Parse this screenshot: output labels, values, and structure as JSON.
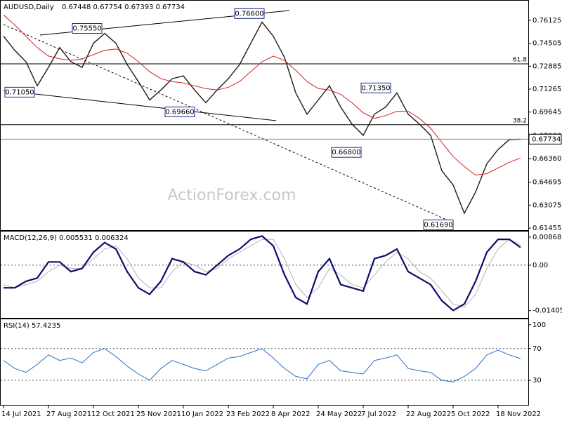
{
  "chart_data": [
    {
      "type": "line",
      "title": "AUDUSD,Daily",
      "subtitle": "0.67448 0.67754 0.67393 0.67734",
      "watermark": "ActionForex.com",
      "ylim": [
        0.6131,
        0.7731
      ],
      "yticks": [
        0.76125,
        0.74505,
        0.72885,
        0.71265,
        0.69645,
        {
          "value": 0.6798,
          "label": "0.67980"
        },
        {
          "value": 0.6636,
          "label": "0.66360"
        },
        0.64695,
        0.63075,
        0.61455
      ],
      "last_price": {
        "value": 0.67734,
        "label": "0.67734"
      },
      "fib_levels": [
        {
          "value": 0.7305,
          "label": "61.8"
        },
        {
          "value": 0.6875,
          "label": "38.2"
        }
      ],
      "annotations": [
        {
          "value": 0.766,
          "label": "0.76600"
        },
        {
          "value": 0.7555,
          "label": "0.75550"
        },
        {
          "value": 0.7105,
          "label": "0.71050"
        },
        {
          "value": 0.6966,
          "label": "0.69660"
        },
        {
          "value": 0.668,
          "label": "0.66800"
        },
        {
          "value": 0.7135,
          "label": "0.71350"
        },
        {
          "value": 0.6169,
          "label": "0.61690"
        }
      ],
      "series": [
        {
          "color": "#1a1a1a",
          "values": [
            0.75,
            0.74,
            0.732,
            0.715,
            0.728,
            0.742,
            0.732,
            0.728,
            0.745,
            0.752,
            0.745,
            0.73,
            0.718,
            0.705,
            0.712,
            0.72,
            0.722,
            0.712,
            0.703,
            0.712,
            0.72,
            0.73,
            0.745,
            0.76,
            0.75,
            0.735,
            0.71,
            0.695,
            0.705,
            0.715,
            0.7,
            0.688,
            0.68,
            0.695,
            0.7,
            0.71,
            0.695,
            0.688,
            0.68,
            0.655,
            0.645,
            0.625,
            0.64,
            0.66,
            0.67,
            0.677,
            0.6773
          ]
        },
        {
          "color": "#d22020",
          "values": [
            0.765,
            0.758,
            0.75,
            0.742,
            0.736,
            0.734,
            0.733,
            0.734,
            0.737,
            0.74,
            0.741,
            0.738,
            0.732,
            0.725,
            0.72,
            0.718,
            0.717,
            0.715,
            0.713,
            0.712,
            0.714,
            0.718,
            0.725,
            0.732,
            0.736,
            0.733,
            0.726,
            0.718,
            0.713,
            0.712,
            0.709,
            0.703,
            0.696,
            0.692,
            0.694,
            0.697,
            0.697,
            0.692,
            0.685,
            0.675,
            0.665,
            0.658,
            0.652,
            0.653,
            0.657,
            0.661,
            0.664
          ]
        }
      ]
    },
    {
      "type": "line",
      "title": "MACD(12,26,9) 0.005531 0.006324",
      "ylim": [
        -0.0163,
        0.0104
      ],
      "yticks": [
        0.008687,
        {
          "value": 0,
          "label": "0.00"
        },
        -0.014056
      ],
      "series": [
        {
          "color": "#b4b4b4",
          "values": [
            -0.006,
            -0.007,
            -0.006,
            -0.005,
            -0.002,
            0.0,
            -0.001,
            -0.001,
            0.002,
            0.005,
            0.006,
            0.002,
            -0.004,
            -0.007,
            -0.007,
            -0.002,
            0.001,
            0.0,
            -0.002,
            -0.001,
            0.002,
            0.004,
            0.006,
            0.008,
            0.008,
            0.002,
            -0.006,
            -0.01,
            -0.007,
            -0.001,
            -0.003,
            -0.006,
            -0.007,
            -0.003,
            0.001,
            0.004,
            0.002,
            -0.002,
            -0.004,
            -0.008,
            -0.012,
            -0.013,
            -0.009,
            -0.001,
            0.005,
            0.008,
            0.0063
          ]
        },
        {
          "color": "#0c0c6e",
          "values": [
            -0.007,
            -0.007,
            -0.005,
            -0.004,
            0.001,
            0.001,
            -0.002,
            -0.001,
            0.004,
            0.007,
            0.005,
            -0.002,
            -0.007,
            -0.009,
            -0.005,
            0.002,
            0.001,
            -0.002,
            -0.003,
            0.0,
            0.003,
            0.005,
            0.008,
            0.009,
            0.006,
            -0.003,
            -0.01,
            -0.012,
            -0.002,
            0.002,
            -0.006,
            -0.007,
            -0.008,
            0.002,
            0.003,
            0.005,
            -0.002,
            -0.004,
            -0.006,
            -0.011,
            -0.014,
            -0.012,
            -0.005,
            0.004,
            0.008,
            0.008,
            0.0055
          ]
        }
      ]
    },
    {
      "type": "line",
      "title": "RSI(14) 57.4235",
      "ylim": [
        0,
        106
      ],
      "yticks": [
        100,
        70,
        30
      ],
      "categories": [
        "14 Jul 2021",
        null,
        null,
        null,
        "27 Aug 2021",
        null,
        null,
        null,
        "12 Oct 2021",
        null,
        null,
        null,
        "25 Nov 2021",
        null,
        null,
        null,
        "10 Jan 2022",
        null,
        null,
        null,
        "23 Feb 2022",
        null,
        null,
        null,
        "8 Apr 2022",
        null,
        null,
        null,
        "24 May 2022",
        null,
        null,
        null,
        "7 Jul 2022",
        null,
        null,
        null,
        "22 Aug 2022",
        null,
        null,
        null,
        "5 Oct 2022",
        null,
        null,
        null,
        "18 Nov 2022",
        null,
        null
      ],
      "series": [
        {
          "color": "#2a6ccc",
          "values": [
            55,
            45,
            40,
            50,
            62,
            55,
            58,
            52,
            65,
            70,
            60,
            48,
            38,
            30,
            45,
            55,
            50,
            45,
            42,
            50,
            58,
            60,
            65,
            70,
            58,
            45,
            35,
            32,
            50,
            55,
            42,
            40,
            38,
            55,
            58,
            62,
            45,
            42,
            40,
            30,
            28,
            35,
            45,
            62,
            68,
            62,
            57.4235
          ]
        }
      ]
    }
  ]
}
